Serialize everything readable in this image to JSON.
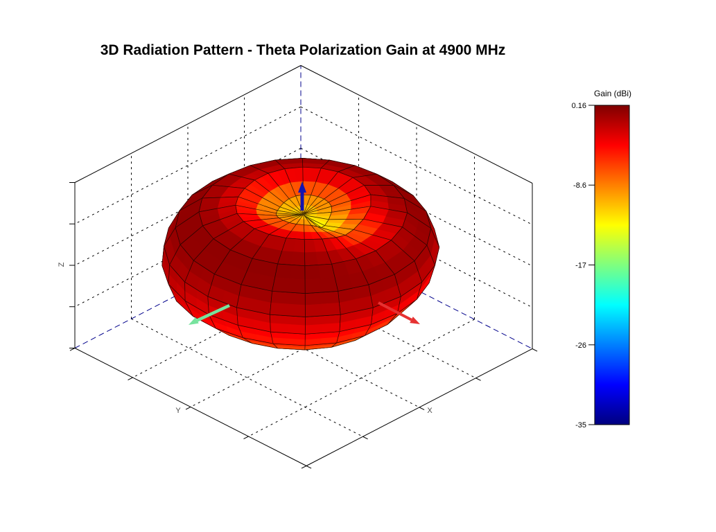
{
  "page": {
    "background": "#ffffff"
  },
  "chart_data": {
    "type": "surface3d-polar",
    "title": "3D Radiation Pattern - Theta Polarization Gain at 4900 MHz",
    "frequency_mhz": 4900,
    "polarization": "Theta",
    "axes": {
      "x_label": "X",
      "y_label": "Y",
      "z_label": "Z"
    },
    "view": {
      "azimuth_deg": -37.5,
      "elevation_deg": 30,
      "projection": "orthographic",
      "grid": "dashed",
      "box_range": [
        -1,
        1
      ],
      "tick_step": 0.5
    },
    "colorbar": {
      "title": "Gain (dBi)",
      "tick_labels": [
        "0.16",
        "-8.6",
        "-17",
        "-26",
        "-35"
      ],
      "tick_values": [
        0.16,
        -8.6,
        -17,
        -26,
        -35
      ],
      "max_dbi": 0.16,
      "min_dbi": -35,
      "colormap": "jet",
      "position": "right"
    },
    "axis_arrows": {
      "x_color": "#e63232",
      "y_color": "#77e39e",
      "z_color": "#1414b0"
    },
    "grid_colors": {
      "grid_dash": "#000000",
      "hidden_edge_dash": "#00008b",
      "solid_edge": "#000000"
    },
    "surface": {
      "units": "dBi",
      "radius_norm": "(gain_db - min_dbi) / (max_dbi - min_dbi)",
      "radius_scale": 0.93,
      "theta_deg": [
        0,
        15,
        30,
        45,
        60,
        75,
        90,
        105,
        120,
        135,
        150,
        165,
        180
      ],
      "phi_step_deg": 15,
      "phi_count": 24,
      "gain_db_by_theta": [
        -11.5,
        -8.5,
        -2.0,
        -0.35,
        -0.6,
        -2.0,
        -3.8,
        -5.2,
        -6.8,
        -8.8,
        -10.8,
        -12.0,
        -12.8
      ],
      "azimuthal_bumps": [
        {
          "theta_deg": 105,
          "phi_deg": 135,
          "amp_db": 2.5,
          "sigma_theta_deg": 28,
          "sigma_phi_deg": 38
        },
        {
          "theta_deg": 25,
          "phi_deg": 350,
          "amp_db": -7.0,
          "sigma_theta_deg": 16,
          "sigma_phi_deg": 30
        },
        {
          "theta_deg": 118,
          "phi_deg": 330,
          "amp_db": -3.0,
          "sigma_theta_deg": 26,
          "sigma_phi_deg": 42
        },
        {
          "theta_deg": 20,
          "phi_deg": 155,
          "amp_db": -2.5,
          "sigma_theta_deg": 14,
          "sigma_phi_deg": 40
        }
      ]
    }
  }
}
